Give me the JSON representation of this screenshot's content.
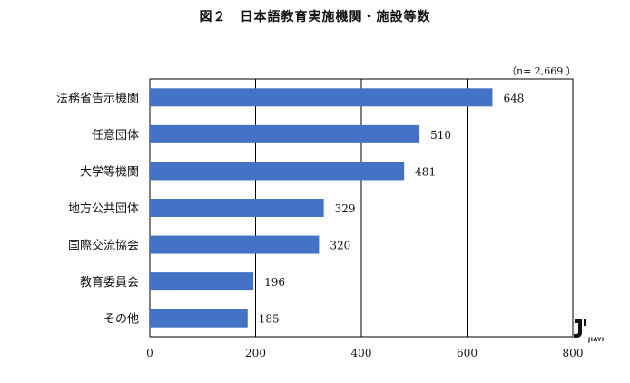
{
  "chart_data": {
    "type": "bar",
    "orientation": "horizontal",
    "title": "図２　日本語教育実施機関・施設等数",
    "note": "（n= 2,669 ）",
    "categories": [
      "法務省告示機関",
      "任意団体",
      "大学等機関",
      "地方公共団体",
      "国際交流協会",
      "教育委員会",
      "その他"
    ],
    "values": [
      648,
      510,
      481,
      329,
      320,
      196,
      185
    ],
    "value_labels": [
      "648",
      "510",
      "481",
      "329",
      "320",
      "196",
      "185"
    ],
    "xlim": [
      0,
      800
    ],
    "xticks": [
      "0",
      "200",
      "400",
      "600",
      "800"
    ],
    "grid": true,
    "legend": "none",
    "bar_color": "#4472C4"
  },
  "watermark": {
    "mark": "J'",
    "text": "JIAYI"
  }
}
